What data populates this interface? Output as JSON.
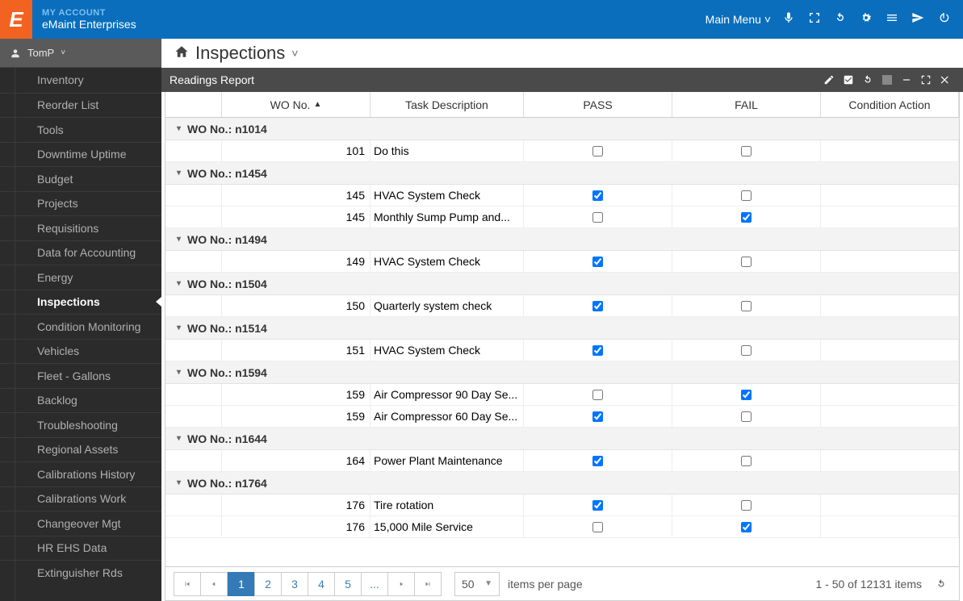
{
  "header": {
    "account_label": "MY ACCOUNT",
    "company": "eMaint Enterprises",
    "main_menu": "Main Menu"
  },
  "user": {
    "name": "TomP"
  },
  "sidebar": {
    "items": [
      {
        "label": "Inventory"
      },
      {
        "label": "Reorder List"
      },
      {
        "label": "Tools"
      },
      {
        "label": "Downtime Uptime"
      },
      {
        "label": "Budget"
      },
      {
        "label": "Projects"
      },
      {
        "label": "Requisitions"
      },
      {
        "label": "Data for Accounting"
      },
      {
        "label": "Energy"
      },
      {
        "label": "Inspections",
        "active": true
      },
      {
        "label": "Condition Monitoring"
      },
      {
        "label": "Vehicles"
      },
      {
        "label": "Fleet - Gallons"
      },
      {
        "label": "Backlog"
      },
      {
        "label": "Troubleshooting"
      },
      {
        "label": "Regional Assets"
      },
      {
        "label": "Calibrations History"
      },
      {
        "label": "Calibrations Work"
      },
      {
        "label": "Changeover Mgt"
      },
      {
        "label": "HR EHS Data"
      },
      {
        "label": "Extinguisher Rds"
      }
    ]
  },
  "page": {
    "title": "Inspections"
  },
  "panel": {
    "title": "Readings Report"
  },
  "grid": {
    "columns": {
      "wo": "WO No.",
      "task": "Task Description",
      "pass": "PASS",
      "fail": "FAIL",
      "cond": "Condition Action"
    },
    "group_prefix": "WO No.:",
    "groups": [
      {
        "key": "n1014",
        "rows": [
          {
            "wo": "101",
            "task": "Do this",
            "pass": false,
            "fail": false
          }
        ]
      },
      {
        "key": "n1454",
        "rows": [
          {
            "wo": "145",
            "task": "HVAC System Check",
            "pass": true,
            "fail": false
          },
          {
            "wo": "145",
            "task": "Monthly Sump Pump and...",
            "pass": false,
            "fail": true
          }
        ]
      },
      {
        "key": "n1494",
        "rows": [
          {
            "wo": "149",
            "task": "HVAC System Check",
            "pass": true,
            "fail": false
          }
        ]
      },
      {
        "key": "n1504",
        "rows": [
          {
            "wo": "150",
            "task": "Quarterly system check",
            "pass": true,
            "fail": false
          }
        ]
      },
      {
        "key": "n1514",
        "rows": [
          {
            "wo": "151",
            "task": "HVAC System Check",
            "pass": true,
            "fail": false
          }
        ]
      },
      {
        "key": "n1594",
        "rows": [
          {
            "wo": "159",
            "task": "Air Compressor 90 Day Se...",
            "pass": false,
            "fail": true
          },
          {
            "wo": "159",
            "task": "Air Compressor 60 Day Se...",
            "pass": true,
            "fail": false
          }
        ]
      },
      {
        "key": "n1644",
        "rows": [
          {
            "wo": "164",
            "task": "Power Plant Maintenance",
            "pass": true,
            "fail": false
          }
        ]
      },
      {
        "key": "n1764",
        "rows": [
          {
            "wo": "176",
            "task": "Tire rotation",
            "pass": true,
            "fail": false
          },
          {
            "wo": "176",
            "task": "15,000 Mile Service",
            "pass": false,
            "fail": true
          }
        ]
      }
    ]
  },
  "pager": {
    "pages": [
      "1",
      "2",
      "3",
      "4",
      "5",
      "..."
    ],
    "active": "1",
    "page_size": "50",
    "items_per_page": "items per page",
    "summary": "1 - 50 of 12131 items"
  }
}
